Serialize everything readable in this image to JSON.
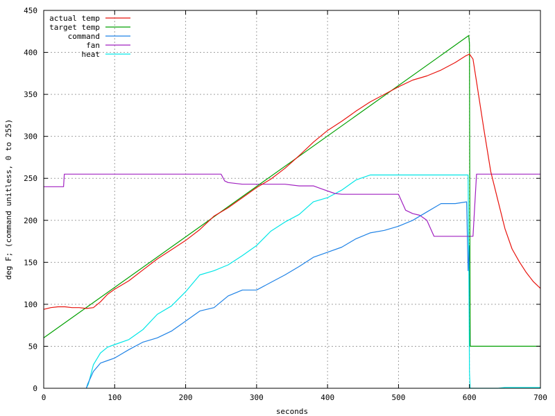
{
  "chart_data": {
    "type": "line",
    "title": "",
    "xlabel": "seconds",
    "ylabel": "deg F; (command unitless, 0 to 255)",
    "xlim": [
      0,
      700
    ],
    "ylim": [
      0,
      450
    ],
    "x_ticks": [
      0,
      100,
      200,
      300,
      400,
      500,
      600,
      700
    ],
    "y_ticks": [
      0,
      50,
      100,
      150,
      200,
      250,
      300,
      350,
      400,
      450
    ],
    "grid": true,
    "legend_position": "top-left",
    "series": [
      {
        "name": "actual temp",
        "color": "#e8120c",
        "x": [
          0,
          10,
          20,
          30,
          40,
          50,
          60,
          70,
          80,
          90,
          100,
          120,
          140,
          160,
          180,
          200,
          220,
          240,
          260,
          280,
          300,
          320,
          340,
          360,
          380,
          400,
          420,
          440,
          460,
          480,
          500,
          520,
          540,
          560,
          580,
          595,
          600,
          605,
          610,
          620,
          630,
          640,
          650,
          660,
          670,
          680,
          690,
          700
        ],
        "y": [
          94,
          96,
          97,
          97,
          96,
          96,
          95,
          96,
          103,
          112,
          118,
          128,
          141,
          154,
          165,
          176,
          189,
          205,
          215,
          227,
          239,
          249,
          262,
          277,
          293,
          307,
          318,
          330,
          341,
          350,
          359,
          367,
          372,
          379,
          388,
          396,
          398,
          392,
          365,
          310,
          258,
          224,
          190,
          166,
          151,
          138,
          127,
          119
        ]
      },
      {
        "name": "target temp",
        "color": "#00a000",
        "x": [
          0,
          599,
          600,
          601,
          700
        ],
        "y": [
          60,
          420,
          410,
          50,
          50
        ]
      },
      {
        "name": "command",
        "color": "#1e82e6",
        "x": [
          60,
          62,
          70,
          80,
          90,
          100,
          120,
          140,
          160,
          180,
          200,
          220,
          240,
          260,
          280,
          300,
          320,
          340,
          360,
          380,
          400,
          420,
          440,
          460,
          480,
          500,
          520,
          540,
          560,
          580,
          596,
          598,
          600,
          601
        ],
        "y": [
          0,
          5,
          20,
          30,
          33,
          36,
          46,
          55,
          60,
          68,
          80,
          92,
          96,
          110,
          117,
          117,
          126,
          135,
          145,
          156,
          162,
          168,
          178,
          185,
          188,
          193,
          200,
          210,
          220,
          220,
          222,
          140,
          170,
          50
        ]
      },
      {
        "name": "fan",
        "color": "#a020c0",
        "x": [
          0,
          28,
          29,
          250,
          255,
          260,
          280,
          290,
          300,
          320,
          340,
          360,
          380,
          390,
          410,
          420,
          480,
          500,
          510,
          520,
          530,
          540,
          550,
          600,
          605,
          610,
          700
        ],
        "y": [
          240,
          240,
          255,
          255,
          247,
          245,
          243,
          243,
          243,
          243,
          243,
          241,
          241,
          238,
          232,
          231,
          231,
          231,
          212,
          208,
          206,
          200,
          181,
          181,
          181,
          255,
          255
        ]
      },
      {
        "name": "heat",
        "color": "#00e6e6",
        "x": [
          60,
          63,
          70,
          80,
          90,
          100,
          120,
          140,
          160,
          180,
          200,
          220,
          240,
          260,
          280,
          300,
          320,
          340,
          360,
          380,
          400,
          420,
          440,
          460,
          480,
          500,
          520,
          540,
          560,
          580,
          598,
          599,
          600,
          601,
          640,
          650,
          700
        ],
        "y": [
          0,
          5,
          28,
          42,
          49,
          52,
          58,
          70,
          88,
          98,
          115,
          135,
          140,
          147,
          158,
          170,
          187,
          198,
          207,
          222,
          227,
          236,
          248,
          254,
          254,
          254,
          254,
          254,
          254,
          254,
          254,
          150,
          20,
          0,
          0,
          1,
          1
        ]
      }
    ]
  }
}
